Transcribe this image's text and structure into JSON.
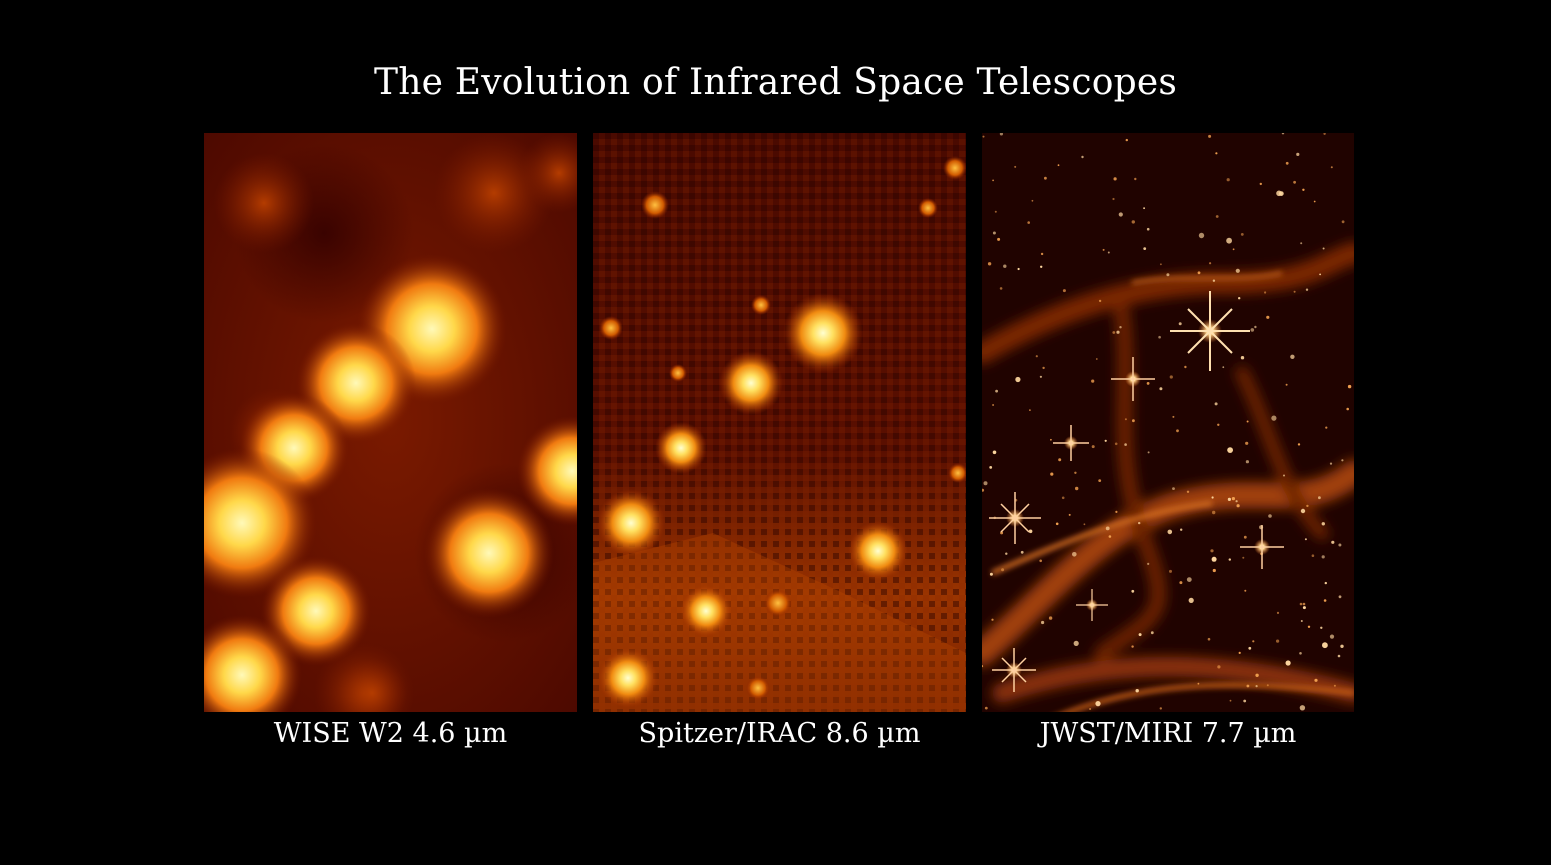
{
  "title": "The Evolution of Infrared Space Telescopes",
  "panels": [
    {
      "id": "wise",
      "caption": "WISE W2 4.6 µm",
      "depicts": "low-resolution infrared image"
    },
    {
      "id": "spitzer",
      "caption": "Spitzer/IRAC 8.6 µm",
      "depicts": "medium-resolution infrared image"
    },
    {
      "id": "jwst",
      "caption": "JWST/MIRI 7.7 µm",
      "depicts": "high-resolution infrared image"
    }
  ],
  "colors": {
    "background": "#000000",
    "text": "#ffffff",
    "dust_dark": "#3a0500",
    "dust_mid": "#8a2400",
    "star_core": "#fff6b0",
    "star_glow": "#ff9a1a"
  }
}
